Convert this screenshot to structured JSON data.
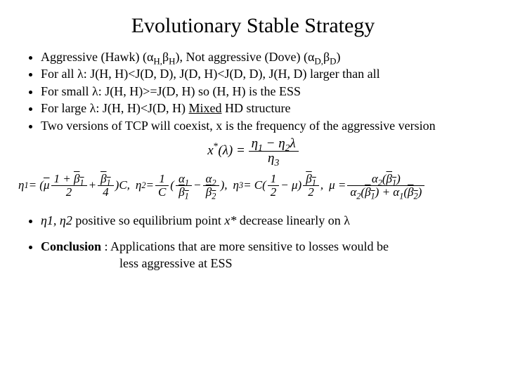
{
  "colors": {
    "background": "#ffffff",
    "text": "#000000"
  },
  "typography": {
    "family": "Times New Roman",
    "title_size_pt": 30,
    "body_size_pt": 18,
    "eq_center_size_pt": 19,
    "eq_row_size_pt": 17
  },
  "title": "Evolutionary Stable Strategy",
  "bullets": {
    "b1": {
      "pre": "Aggressive (Hawk) (α",
      "h": "H,",
      "mid": "β",
      "h2": "H",
      "post": "), Not aggressive (Dove) (α",
      "d": "D,",
      "mid2": "β",
      "d2": "D",
      "end": ")"
    },
    "b2": {
      "pre": "For all λ:        J(H, H)<J(D, D), J(D, H)<J(D, D), J(H, D) larger than all"
    },
    "b3": {
      "pre": "For small λ:  J(H, H)>=J(D, H) so (H, H) is the ESS"
    },
    "b4": {
      "pre": "For large λ:  J(H, H)<J(D, H) ",
      "under": "Mixed",
      "post": " HD structure"
    },
    "b5": {
      "text": "Two versions of TCP will coexist, x is the frequency of the aggressive version"
    }
  },
  "eq_center": {
    "lhs": "x",
    "star": "*",
    "of": "(λ) = ",
    "num": "η",
    "n1": "1",
    "minus": " − η",
    "n2": "2",
    "lam": "λ",
    "den": "η",
    "d3": "3"
  },
  "eq_row": {
    "e1": {
      "lhs": "η",
      "s1": "1",
      "eq": " = (",
      "mu": "μ",
      "ol": true,
      "num_a": "1 + ",
      "num_b": "β",
      "num_bs": "1",
      "plus": " + ",
      "inner_num": "β",
      "inner_s": "1",
      "inner_den": "4",
      "outer_den": "2",
      "close": ")C,  "
    },
    "e2": {
      "lhs": "η",
      "s2": "2",
      "eq": " = ",
      "oneC_num": "1",
      "oneC_den": "C",
      "open": "(",
      "a1_num": "α",
      "a1_s": "1",
      "a1_den": "β",
      "a1_ds": "1",
      "minus": " − ",
      "a2_num": "α",
      "a2_s": "2",
      "a2_den": "β",
      "a2_ds": "2",
      "close": "),  "
    },
    "e3": {
      "lhs": "η",
      "s3": "3",
      "eq": " = C(",
      "half_num": "1",
      "half_den": "2",
      "minus": " − μ)",
      "inner_num": "β",
      "inner_s": "1",
      "inner_den": "2",
      "comma": ",  "
    },
    "e4": {
      "lhs": "μ = ",
      "num_a": "α",
      "num_as": "2",
      "num_open": "(",
      "num_b": "β",
      "num_bs": "1",
      "num_ol": true,
      "num_close": ")",
      "den_a1": "α",
      "den_a1s": "2",
      "den_open1": "(",
      "den_b1": "β",
      "den_b1s": "1",
      "den_ol1": true,
      "den_close1": ") + ",
      "den_a2": "α",
      "den_a2s": "1",
      "den_open2": "(",
      "den_b2": "β",
      "den_b2s": "2",
      "den_ol2": true,
      "den_close2": ")"
    }
  },
  "lower": {
    "l1": {
      "etas": "η1, η2",
      "rest1": "   positive so equilibrium point  ",
      "xstar": "x*",
      "rest2": " decrease linearly on λ"
    },
    "l2": {
      "bold": "Conclusion",
      "colon": " : Applications that are more sensitive to losses would be ",
      "line2": "less aggressive at ESS"
    }
  }
}
